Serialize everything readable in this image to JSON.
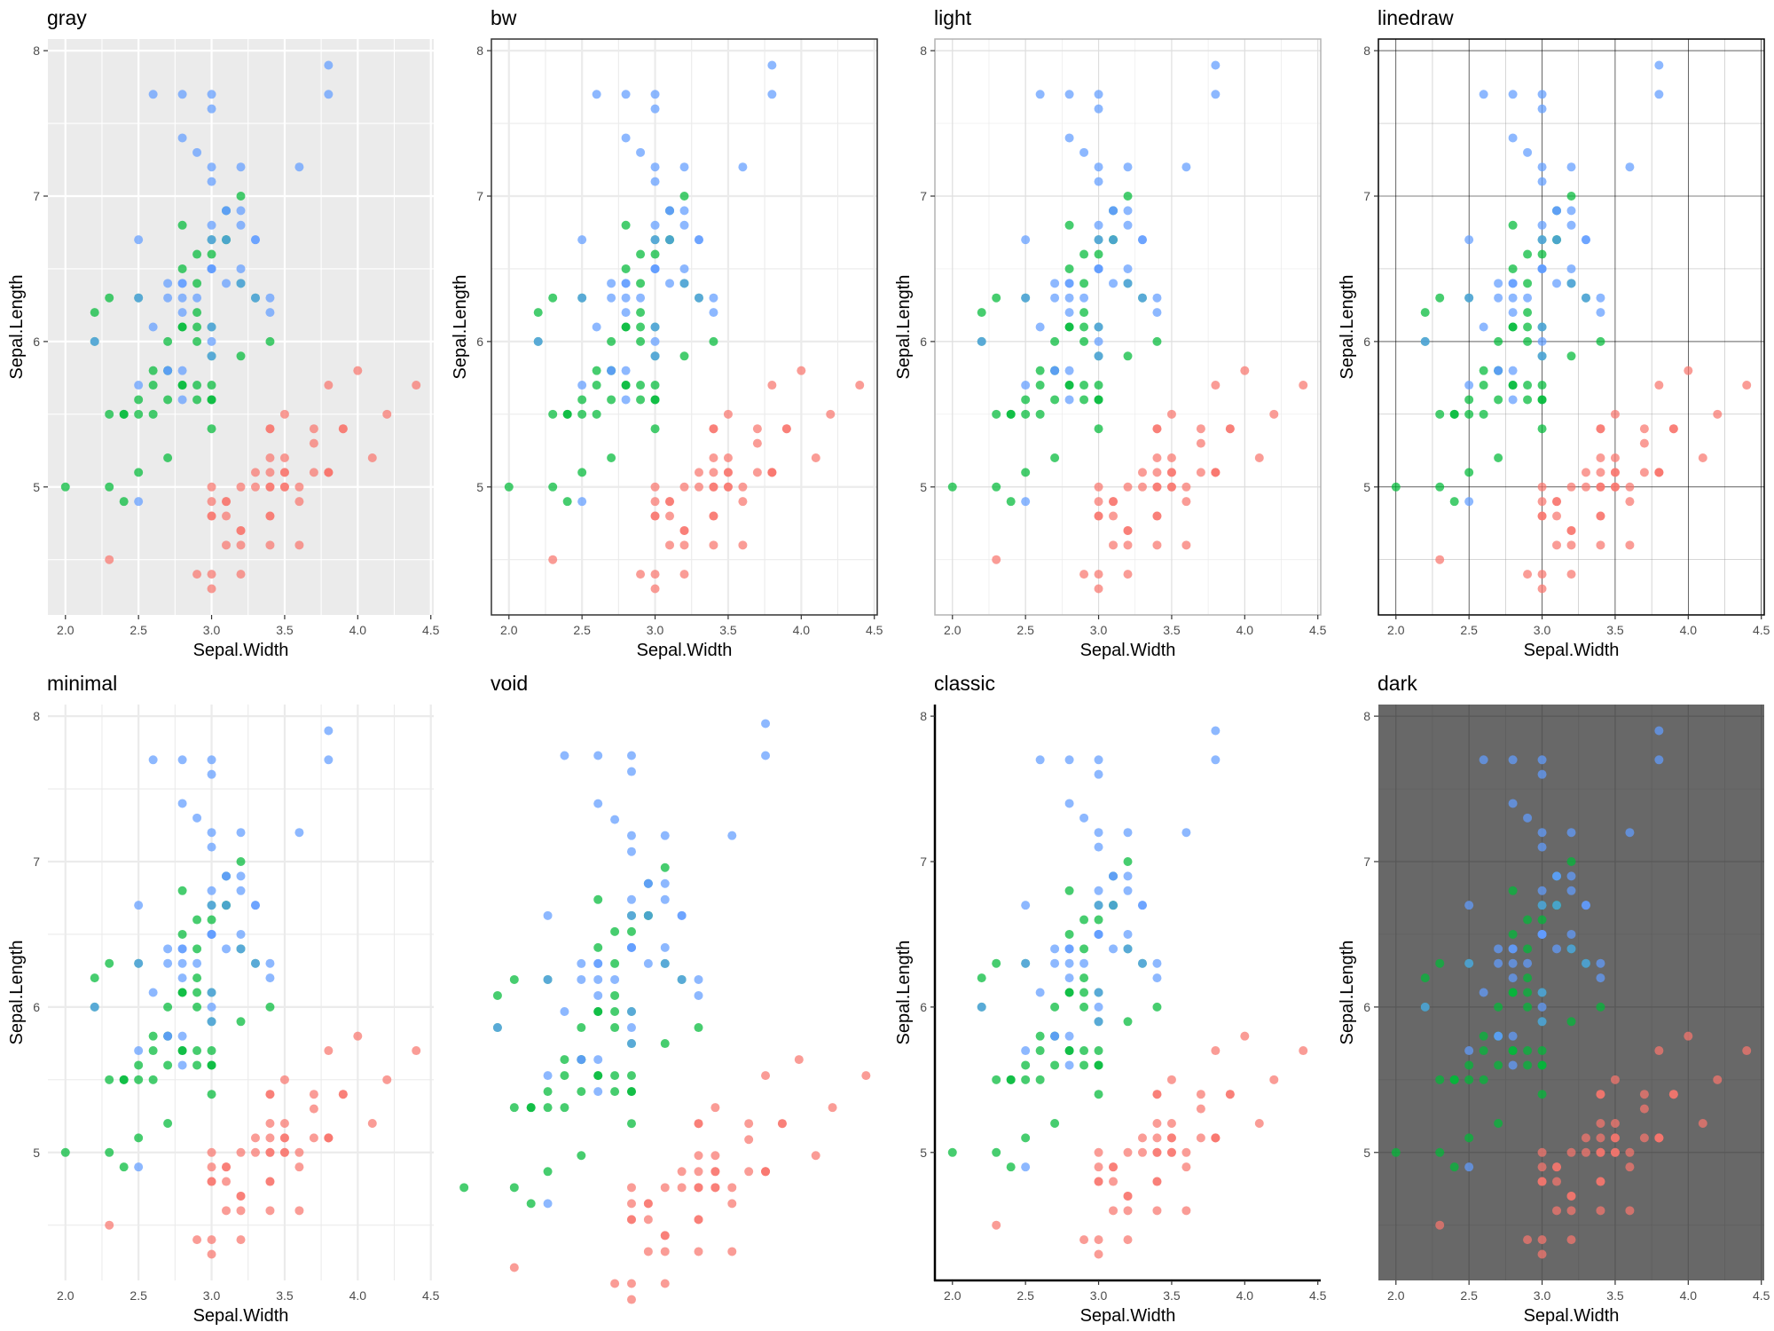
{
  "chart_data": {
    "type": "scatter",
    "panels": [
      {
        "title": "gray",
        "theme": "gray"
      },
      {
        "title": "bw",
        "theme": "bw"
      },
      {
        "title": "light",
        "theme": "light"
      },
      {
        "title": "linedraw",
        "theme": "linedraw"
      },
      {
        "title": "minimal",
        "theme": "minimal"
      },
      {
        "title": "void",
        "theme": "void"
      },
      {
        "title": "classic",
        "theme": "classic"
      },
      {
        "title": "dark",
        "theme": "dark"
      }
    ],
    "xlabel": "Sepal.Width",
    "ylabel": "Sepal.Length",
    "xlim": [
      1.88,
      4.52
    ],
    "ylim": [
      4.12,
      8.08
    ],
    "x_ticks": [
      "2.0",
      "2.5",
      "3.0",
      "3.5",
      "4.0",
      "4.5"
    ],
    "y_ticks": [
      "5",
      "6",
      "7",
      "8"
    ],
    "grid": true,
    "legend": "none",
    "series": [
      {
        "color": "#F8766D",
        "points": [
          [
            3.5,
            5.1
          ],
          [
            3.0,
            4.9
          ],
          [
            3.2,
            4.7
          ],
          [
            3.1,
            4.6
          ],
          [
            3.6,
            5.0
          ],
          [
            3.9,
            5.4
          ],
          [
            3.4,
            4.6
          ],
          [
            3.4,
            5.0
          ],
          [
            2.9,
            4.4
          ],
          [
            3.1,
            4.9
          ],
          [
            3.7,
            5.4
          ],
          [
            3.4,
            4.8
          ],
          [
            3.0,
            4.8
          ],
          [
            3.0,
            4.3
          ],
          [
            4.0,
            5.8
          ],
          [
            4.4,
            5.7
          ],
          [
            3.9,
            5.4
          ],
          [
            3.5,
            5.1
          ],
          [
            3.8,
            5.7
          ],
          [
            3.8,
            5.1
          ],
          [
            3.4,
            5.4
          ],
          [
            3.7,
            5.1
          ],
          [
            3.6,
            4.6
          ],
          [
            3.3,
            5.1
          ],
          [
            3.4,
            4.8
          ],
          [
            3.0,
            5.0
          ],
          [
            3.4,
            5.0
          ],
          [
            3.5,
            5.2
          ],
          [
            3.4,
            5.2
          ],
          [
            3.2,
            4.7
          ],
          [
            3.1,
            4.8
          ],
          [
            3.4,
            5.4
          ],
          [
            4.1,
            5.2
          ],
          [
            4.2,
            5.5
          ],
          [
            3.1,
            4.9
          ],
          [
            3.2,
            5.0
          ],
          [
            3.5,
            5.5
          ],
          [
            3.6,
            4.9
          ],
          [
            3.0,
            4.4
          ],
          [
            3.4,
            5.1
          ],
          [
            3.5,
            5.0
          ],
          [
            2.3,
            4.5
          ],
          [
            3.2,
            4.4
          ],
          [
            3.5,
            5.0
          ],
          [
            3.8,
            5.1
          ],
          [
            3.0,
            4.8
          ],
          [
            3.8,
            5.1
          ],
          [
            3.2,
            4.6
          ],
          [
            3.7,
            5.3
          ],
          [
            3.3,
            5.0
          ]
        ]
      },
      {
        "color": "#00BA38",
        "points": [
          [
            3.2,
            7.0
          ],
          [
            3.2,
            6.4
          ],
          [
            3.1,
            6.9
          ],
          [
            2.3,
            5.5
          ],
          [
            2.8,
            6.5
          ],
          [
            2.8,
            5.7
          ],
          [
            3.3,
            6.3
          ],
          [
            2.4,
            4.9
          ],
          [
            2.9,
            6.6
          ],
          [
            2.7,
            5.2
          ],
          [
            2.0,
            5.0
          ],
          [
            3.0,
            5.9
          ],
          [
            2.2,
            6.0
          ],
          [
            2.9,
            6.1
          ],
          [
            2.9,
            5.6
          ],
          [
            3.1,
            6.7
          ],
          [
            3.0,
            5.6
          ],
          [
            2.7,
            5.8
          ],
          [
            2.2,
            6.2
          ],
          [
            2.5,
            5.6
          ],
          [
            3.2,
            5.9
          ],
          [
            2.8,
            6.1
          ],
          [
            2.5,
            6.3
          ],
          [
            2.8,
            6.1
          ],
          [
            2.9,
            6.4
          ],
          [
            3.0,
            6.6
          ],
          [
            2.8,
            6.8
          ],
          [
            3.0,
            6.7
          ],
          [
            2.9,
            6.0
          ],
          [
            2.6,
            5.7
          ],
          [
            2.4,
            5.5
          ],
          [
            2.4,
            5.5
          ],
          [
            2.7,
            5.8
          ],
          [
            2.7,
            6.0
          ],
          [
            3.0,
            5.4
          ],
          [
            3.4,
            6.0
          ],
          [
            3.1,
            6.7
          ],
          [
            2.3,
            6.3
          ],
          [
            3.0,
            5.6
          ],
          [
            2.5,
            5.5
          ],
          [
            2.6,
            5.5
          ],
          [
            3.0,
            6.1
          ],
          [
            2.6,
            5.8
          ],
          [
            2.3,
            5.0
          ],
          [
            2.7,
            5.6
          ],
          [
            3.0,
            5.7
          ],
          [
            2.9,
            5.7
          ],
          [
            2.9,
            6.2
          ],
          [
            2.5,
            5.1
          ],
          [
            2.8,
            5.7
          ]
        ]
      },
      {
        "color": "#619CFF",
        "points": [
          [
            3.3,
            6.3
          ],
          [
            2.7,
            5.8
          ],
          [
            3.0,
            7.1
          ],
          [
            2.9,
            6.3
          ],
          [
            3.0,
            6.5
          ],
          [
            3.0,
            7.6
          ],
          [
            2.5,
            4.9
          ],
          [
            2.9,
            7.3
          ],
          [
            2.5,
            6.7
          ],
          [
            3.6,
            7.2
          ],
          [
            3.2,
            6.5
          ],
          [
            2.7,
            6.4
          ],
          [
            3.0,
            6.8
          ],
          [
            2.5,
            5.7
          ],
          [
            2.8,
            5.8
          ],
          [
            3.2,
            6.4
          ],
          [
            3.0,
            6.5
          ],
          [
            3.8,
            7.7
          ],
          [
            2.6,
            7.7
          ],
          [
            2.2,
            6.0
          ],
          [
            3.2,
            6.9
          ],
          [
            2.8,
            5.6
          ],
          [
            2.8,
            7.7
          ],
          [
            2.7,
            6.3
          ],
          [
            3.3,
            6.7
          ],
          [
            3.2,
            7.2
          ],
          [
            2.8,
            6.2
          ],
          [
            3.0,
            6.1
          ],
          [
            2.8,
            6.4
          ],
          [
            3.0,
            7.2
          ],
          [
            2.8,
            7.4
          ],
          [
            3.8,
            7.9
          ],
          [
            2.8,
            6.4
          ],
          [
            2.8,
            6.3
          ],
          [
            2.6,
            6.1
          ],
          [
            3.0,
            7.7
          ],
          [
            3.4,
            6.3
          ],
          [
            3.1,
            6.4
          ],
          [
            3.0,
            6.0
          ],
          [
            3.1,
            6.9
          ],
          [
            3.1,
            6.7
          ],
          [
            3.1,
            6.9
          ],
          [
            2.7,
            5.8
          ],
          [
            3.2,
            6.8
          ],
          [
            3.3,
            6.7
          ],
          [
            3.0,
            6.7
          ],
          [
            2.5,
            6.3
          ],
          [
            3.0,
            6.5
          ],
          [
            3.4,
            6.2
          ],
          [
            3.0,
            5.9
          ]
        ]
      }
    ]
  }
}
